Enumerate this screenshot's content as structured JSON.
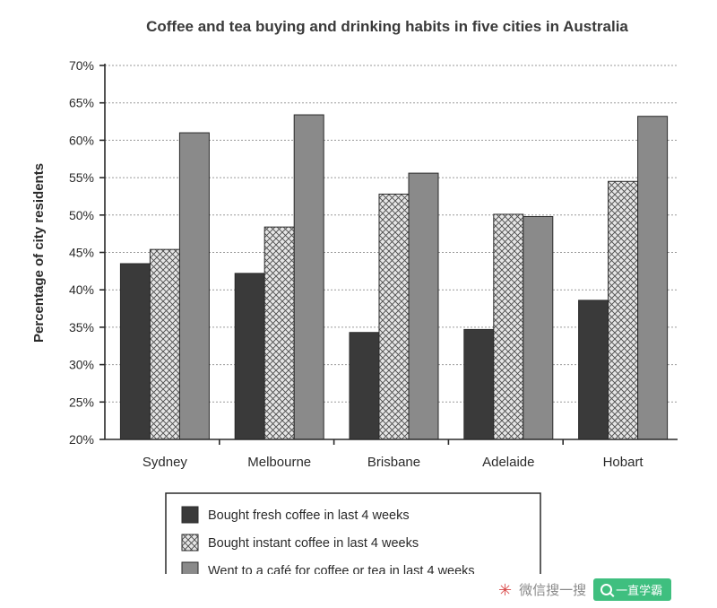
{
  "chart_data": {
    "type": "bar",
    "title": "Coffee and tea buying and drinking habits in five cities in Australia",
    "xlabel": "",
    "ylabel": "Percentage of city residents",
    "categories": [
      "Sydney",
      "Melbourne",
      "Brisbane",
      "Adelaide",
      "Hobart"
    ],
    "ylim": [
      20,
      70
    ],
    "yticks": [
      "20%",
      "25%",
      "30%",
      "35%",
      "40%",
      "45%",
      "50%",
      "55%",
      "60%",
      "65%",
      "70%"
    ],
    "grid": true,
    "legend_position": "bottom",
    "series": [
      {
        "name": "Bought fresh coffee in last 4 weeks",
        "values": [
          43.5,
          42.2,
          34.3,
          34.7,
          38.6
        ],
        "pattern": "solid-dark",
        "color": "#3a3a3a"
      },
      {
        "name": "Bought instant coffee in last 4 weeks",
        "values": [
          45.4,
          48.4,
          52.8,
          50.1,
          54.5
        ],
        "pattern": "crosshatch",
        "color": "#bdbdbd"
      },
      {
        "name": "Went to a café for coffee or tea in last 4 weeks",
        "values": [
          61.0,
          63.4,
          55.6,
          49.8,
          63.2
        ],
        "pattern": "solid-gray",
        "color": "#8a8a8a"
      }
    ]
  },
  "watermark": {
    "logo_icon": "sparkle-icon",
    "text": "微信搜一搜",
    "search_icon": "search-icon",
    "button_label": "一直学霸"
  }
}
